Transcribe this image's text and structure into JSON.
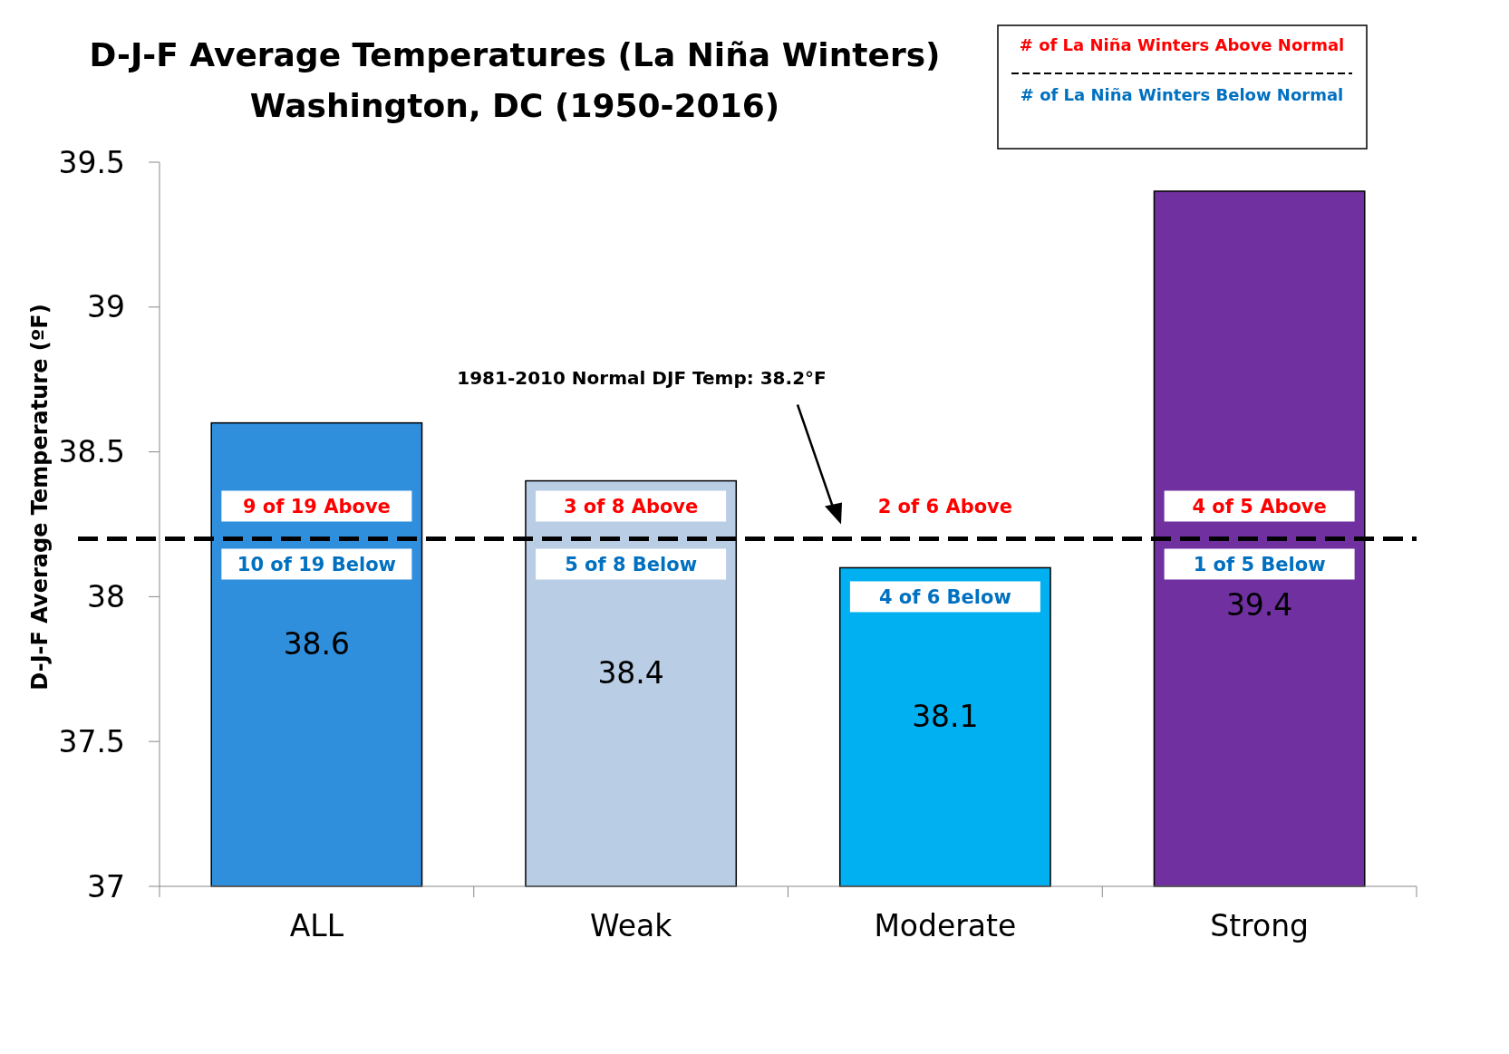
{
  "chart_data": {
    "type": "bar",
    "title": "D-J-F Average Temperatures (La Niña Winters)\nWashington, DC (1950-2016)",
    "ylabel": "D-J-F Average Temperature (ºF)",
    "categories": [
      "ALL",
      "Weak",
      "Moderate",
      "Strong"
    ],
    "values": [
      38.6,
      38.4,
      38.1,
      39.4
    ],
    "colors": [
      "#2f8fdc",
      "#b9cde5",
      "#00b0f0",
      "#7030a0"
    ],
    "ylim": [
      37,
      39.5
    ],
    "yticks": [
      37,
      37.5,
      38,
      38.5,
      39,
      39.5
    ],
    "grid": false,
    "data_labels": true,
    "ref_lines": [
      {
        "axis": "y",
        "value": 38.2,
        "label": "1981-2010  Normal DJF Temp: 38.2°F",
        "color": "#000000",
        "line_style": "dashed"
      }
    ],
    "annotations": [
      "# of La Niña Winters Above Normal",
      "# of La Niña Winters Below Normal",
      "9 of 19 Above",
      "10 of 19 Below",
      "3 of 8 Above",
      "5 of 8 Below",
      "2 of 6 Above",
      "4 of 6 Below",
      "4 of 5 Above",
      "1 of 5 Below"
    ]
  }
}
